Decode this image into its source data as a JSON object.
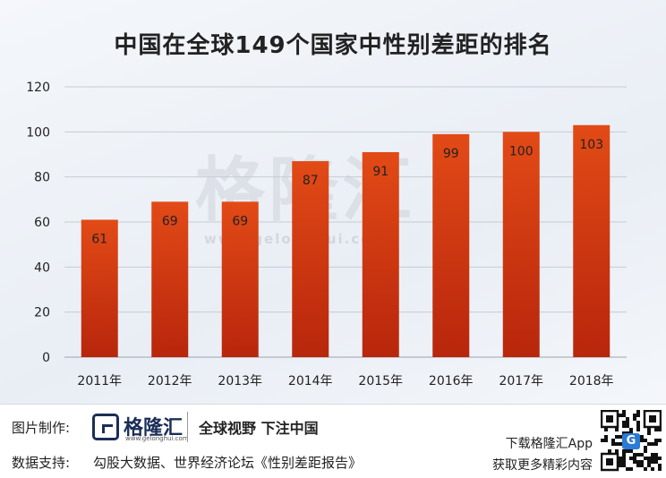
{
  "title": "中国在全球149个国家中性别差距的排名",
  "watermark": {
    "text": "格隆汇",
    "url": "www.gelonghui.com"
  },
  "chart_data": {
    "type": "bar",
    "categories": [
      "2011年",
      "2012年",
      "2013年",
      "2014年",
      "2015年",
      "2016年",
      "2017年",
      "2018年"
    ],
    "values": [
      61,
      69,
      69,
      87,
      91,
      99,
      100,
      103
    ],
    "ylim": [
      0,
      120
    ],
    "yticks": [
      0,
      20,
      40,
      60,
      80,
      100,
      120
    ],
    "grid": true,
    "bar_color_top": "#e24a16",
    "bar_color_bottom": "#b8260c"
  },
  "footer": {
    "made_by_label": "图片制作:",
    "brand_name": "格隆汇",
    "brand_url": "www.gelonghui.com",
    "slogan": "全球视野 下注中国",
    "source_label": "数据支持:",
    "source_text": "勾股大数据、世界经济论坛《性别差距报告》",
    "app_line1": "下载格隆汇App",
    "app_line2": "获取更多精彩内容",
    "qr_icon": "qr-code-icon"
  }
}
